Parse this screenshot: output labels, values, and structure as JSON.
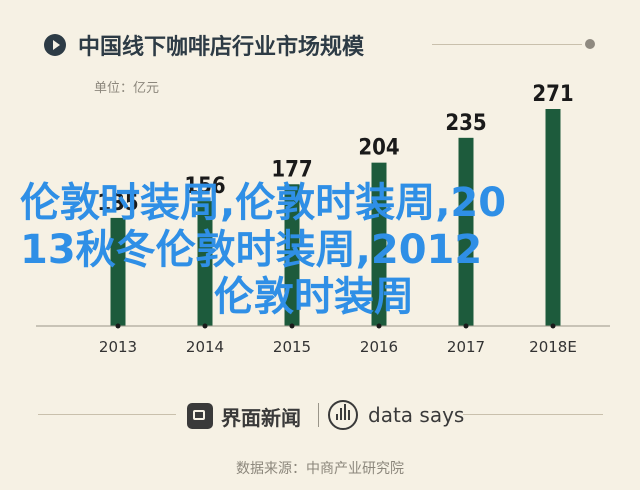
{
  "header": {
    "title": "中国线下咖啡店行业市场规模",
    "unit": "单位：亿元"
  },
  "overlay_text": {
    "line1": "伦敦时装周,伦敦时装周,20",
    "line2": "13秋冬伦敦时装周,2012",
    "line3": "伦敦时装周"
  },
  "footer": {
    "brand_jiemian": "界面新闻",
    "brand_datasays": "data says",
    "source": "数据来源：中商产业研究院"
  },
  "colors": {
    "background": "#f6f1e4",
    "bar": "#1d5b3c",
    "title": "#2d3b45",
    "overlay": "#2f8fe6"
  },
  "chart_data": {
    "type": "bar",
    "title": "中国线下咖啡店行业市场规模",
    "ylabel": "单位：亿元",
    "categories": [
      "2013",
      "2014",
      "2015",
      "2016",
      "2017",
      "2018E"
    ],
    "values": [
      135,
      156,
      177,
      204,
      235,
      271
    ],
    "ylim": [
      0,
      271
    ],
    "grid": false,
    "legend": "none"
  }
}
